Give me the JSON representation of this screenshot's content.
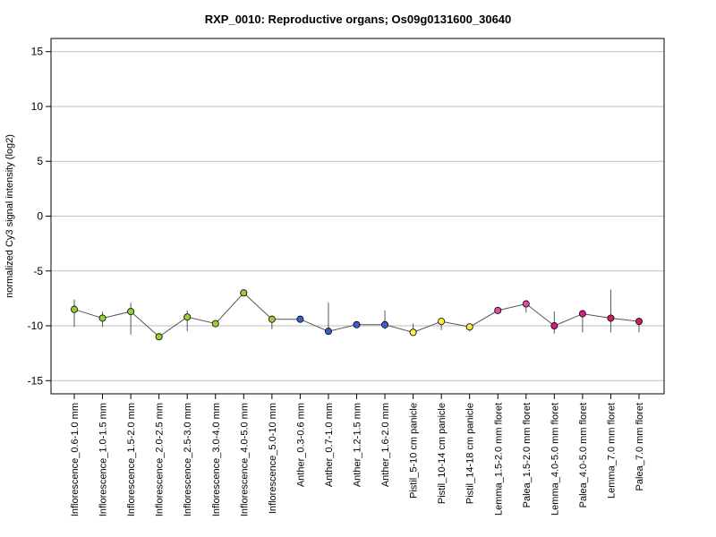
{
  "chart_data": {
    "type": "line",
    "title": "RXP_0010: Reproductive organs; Os09g0131600_30640",
    "ylabel": "normalized Cy3 signal intensity (log2)",
    "xlabel": "",
    "ylim": [
      -16.2,
      16.2
    ],
    "yticks": [
      -15,
      -10,
      -5,
      0,
      5,
      10,
      15
    ],
    "grid": true,
    "categories": [
      "Inflorescence_0.6-1.0 mm",
      "Inflorescence_1.0-1.5 mm",
      "Inflorescence_1.5-2.0 mm",
      "Inflorescence_2.0-2.5 mm",
      "Inflorescence_2.5-3.0 mm",
      "Inflorescence_3.0-4.0 mm",
      "Inflorescence_4.0-5.0 mm",
      "Inflorescence_5.0-10 mm",
      "Anther_0.3-0.6 mm",
      "Anther_0.7-1.0 mm",
      "Anther_1.2-1.5 mm",
      "Anther_1.6-2.0 mm",
      "Pistil_5-10 cm panicle",
      "Pistil_10-14 cm panicle",
      "Pistil_14-18 cm panicle",
      "Lemma_1.5-2.0 mm floret",
      "Palea_1.5-2.0 mm floret",
      "Lemma_4.0-5.0 mm floret",
      "Palea_4.0-5.0 mm floret",
      "Lemma_7.0 mm floret",
      "Palea_7.0 mm floret"
    ],
    "values": [
      -8.5,
      -9.3,
      -8.7,
      -11.0,
      -9.2,
      -9.8,
      -7.0,
      -9.4,
      -9.4,
      -10.5,
      -9.9,
      -9.9,
      -10.6,
      -9.6,
      -10.1,
      -8.6,
      -8.0,
      -10.0,
      -8.9,
      -9.3,
      -9.6
    ],
    "error_low": [
      -10.1,
      -10.1,
      -10.8,
      -11.1,
      -10.5,
      -9.9,
      -7.2,
      -10.3,
      -9.6,
      -10.6,
      -10.0,
      -10.3,
      -10.8,
      -10.4,
      -10.5,
      -8.8,
      -8.8,
      -10.7,
      -10.6,
      -10.6,
      -10.6
    ],
    "error_high": [
      -7.6,
      -8.7,
      -7.9,
      -10.9,
      -8.6,
      -9.7,
      -6.7,
      -9.3,
      -9.3,
      -7.9,
      -9.8,
      -8.6,
      -9.8,
      -9.3,
      -9.8,
      -8.4,
      -7.8,
      -8.7,
      -8.7,
      -6.7,
      -9.4
    ],
    "point_colors": [
      "#9acd32",
      "#9acd32",
      "#9acd32",
      "#9acd32",
      "#9acd32",
      "#9acd32",
      "#9acd32",
      "#9acd32",
      "#3a5fcd",
      "#3a5fcd",
      "#3a5fcd",
      "#3a5fcd",
      "#ffec3b",
      "#ffec3b",
      "#ffec3b",
      "#e24a9e",
      "#e24a9e",
      "#e0168c",
      "#e0168c",
      "#cc1f66",
      "#cc1f66"
    ],
    "line_color": "#555555",
    "error_color": "#555555",
    "grid_color": "#bebebe"
  }
}
